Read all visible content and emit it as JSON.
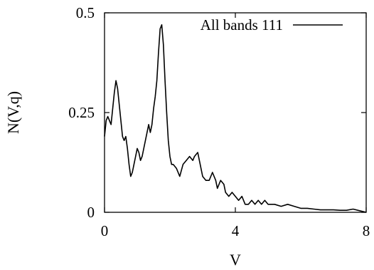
{
  "chart_data": {
    "type": "line",
    "title": "",
    "xlabel": "V",
    "ylabel": "N(V,q)",
    "xlim": [
      0,
      8
    ],
    "ylim": [
      0,
      0.5
    ],
    "x_ticks": [
      0,
      4,
      8
    ],
    "x_tick_labels": [
      "0",
      "4",
      "8"
    ],
    "y_ticks": [
      0,
      0.25,
      0.5
    ],
    "y_tick_labels": [
      "0",
      "0.25",
      "0.5"
    ],
    "grid": false,
    "legend_position": "top-right",
    "series": [
      {
        "name": "All bands 111",
        "color": "#000000",
        "points": [
          [
            0.0,
            0.19
          ],
          [
            0.05,
            0.23
          ],
          [
            0.1,
            0.24
          ],
          [
            0.15,
            0.23
          ],
          [
            0.2,
            0.22
          ],
          [
            0.25,
            0.26
          ],
          [
            0.3,
            0.3
          ],
          [
            0.35,
            0.33
          ],
          [
            0.4,
            0.31
          ],
          [
            0.45,
            0.27
          ],
          [
            0.5,
            0.23
          ],
          [
            0.55,
            0.19
          ],
          [
            0.6,
            0.18
          ],
          [
            0.65,
            0.19
          ],
          [
            0.7,
            0.16
          ],
          [
            0.75,
            0.12
          ],
          [
            0.8,
            0.09
          ],
          [
            0.85,
            0.1
          ],
          [
            0.9,
            0.12
          ],
          [
            0.95,
            0.14
          ],
          [
            1.0,
            0.16
          ],
          [
            1.05,
            0.15
          ],
          [
            1.1,
            0.13
          ],
          [
            1.15,
            0.14
          ],
          [
            1.2,
            0.16
          ],
          [
            1.25,
            0.18
          ],
          [
            1.3,
            0.2
          ],
          [
            1.35,
            0.22
          ],
          [
            1.4,
            0.2
          ],
          [
            1.45,
            0.22
          ],
          [
            1.5,
            0.26
          ],
          [
            1.55,
            0.29
          ],
          [
            1.6,
            0.33
          ],
          [
            1.65,
            0.4
          ],
          [
            1.7,
            0.46
          ],
          [
            1.75,
            0.47
          ],
          [
            1.8,
            0.42
          ],
          [
            1.85,
            0.33
          ],
          [
            1.9,
            0.25
          ],
          [
            1.95,
            0.18
          ],
          [
            2.0,
            0.14
          ],
          [
            2.05,
            0.12
          ],
          [
            2.1,
            0.12
          ],
          [
            2.2,
            0.11
          ],
          [
            2.3,
            0.09
          ],
          [
            2.4,
            0.12
          ],
          [
            2.5,
            0.13
          ],
          [
            2.6,
            0.14
          ],
          [
            2.7,
            0.13
          ],
          [
            2.75,
            0.14
          ],
          [
            2.85,
            0.15
          ],
          [
            2.9,
            0.13
          ],
          [
            3.0,
            0.09
          ],
          [
            3.1,
            0.08
          ],
          [
            3.2,
            0.08
          ],
          [
            3.3,
            0.1
          ],
          [
            3.4,
            0.08
          ],
          [
            3.45,
            0.06
          ],
          [
            3.55,
            0.08
          ],
          [
            3.65,
            0.07
          ],
          [
            3.7,
            0.05
          ],
          [
            3.8,
            0.04
          ],
          [
            3.9,
            0.05
          ],
          [
            4.0,
            0.04
          ],
          [
            4.1,
            0.03
          ],
          [
            4.2,
            0.04
          ],
          [
            4.3,
            0.02
          ],
          [
            4.4,
            0.02
          ],
          [
            4.5,
            0.03
          ],
          [
            4.6,
            0.02
          ],
          [
            4.7,
            0.03
          ],
          [
            4.8,
            0.02
          ],
          [
            4.9,
            0.03
          ],
          [
            5.0,
            0.02
          ],
          [
            5.2,
            0.02
          ],
          [
            5.4,
            0.015
          ],
          [
            5.6,
            0.02
          ],
          [
            5.8,
            0.015
          ],
          [
            6.0,
            0.01
          ],
          [
            6.2,
            0.01
          ],
          [
            6.4,
            0.008
          ],
          [
            6.6,
            0.006
          ],
          [
            6.8,
            0.006
          ],
          [
            7.0,
            0.006
          ],
          [
            7.2,
            0.005
          ],
          [
            7.4,
            0.005
          ],
          [
            7.6,
            0.008
          ],
          [
            7.8,
            0.004
          ],
          [
            8.0,
            0.0
          ]
        ]
      }
    ]
  }
}
